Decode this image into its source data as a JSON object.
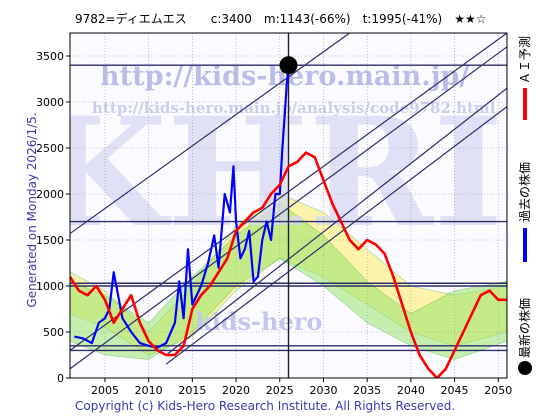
{
  "header": {
    "title": "9782=ディエムエス　　c:3400　m:1143(-66%)　t:1995(-41%)　★★☆"
  },
  "side": {
    "generated": "Generated on Monday 2026/1/5.",
    "copyright": "Copyright (c) Kids-Hero Research Institute. All Rights Reserved."
  },
  "watermarks": {
    "url": "http://kids-hero.main.jp/",
    "url2": "http://kids-hero.main.jp/analysis/code9782.html",
    "big": "KHRI",
    "small": "kids-hero"
  },
  "legend": [
    {
      "label": "ＡＩ予測",
      "color": "#ff0000"
    },
    {
      "label": "過去の株価",
      "color": "#0000ff"
    },
    {
      "label": "最新の株価",
      "color": "#000000"
    }
  ],
  "chart_data": {
    "type": "line",
    "title": "9782=ディエムエス　　c:3400　m:1143(-66%)　t:1995(-41%)　★★☆",
    "xlim": [
      2001.0,
      2051.0
    ],
    "ylim": [
      0,
      3750
    ],
    "x_ticks": [
      2005,
      2010,
      2015,
      2020,
      2025,
      2030,
      2035,
      2040,
      2045,
      2050
    ],
    "y_ticks": [
      0,
      500,
      1000,
      1500,
      2000,
      2500,
      3000,
      3500
    ],
    "latest_point": {
      "x": 2026.0,
      "y": 3400
    },
    "horizontal_levels": [
      3400,
      1700,
      1030,
      1000,
      350,
      300
    ],
    "trend_lines": [
      {
        "from": [
          2001.0,
          1570
        ],
        "to": [
          2033.0,
          3750
        ]
      },
      {
        "from": [
          2001.0,
          300
        ],
        "to": [
          2051.0,
          3750
        ]
      },
      {
        "from": [
          2001.0,
          100
        ],
        "to": [
          2051.0,
          3600
        ]
      },
      {
        "from": [
          2012.0,
          250
        ],
        "to": [
          2051.0,
          3150
        ]
      },
      {
        "from": [
          2012.0,
          150
        ],
        "to": [
          2051.0,
          2950
        ]
      }
    ],
    "series": [
      {
        "name": "過去の株価",
        "color": "#0000ff",
        "x": [
          2001.5,
          2002.5,
          2003.5,
          2004.3,
          2005.0,
          2005.5,
          2006.0,
          2007.0,
          2008.0,
          2009.0,
          2010.0,
          2011.0,
          2012.0,
          2013.0,
          2013.5,
          2014.0,
          2014.5,
          2015.0,
          2016.0,
          2016.8,
          2017.5,
          2018.0,
          2018.7,
          2019.3,
          2019.7,
          2020.0,
          2020.5,
          2021.0,
          2021.5,
          2022.0,
          2022.5,
          2023.0,
          2023.5,
          2024.0,
          2024.5,
          2025.0,
          2025.3,
          2025.6,
          2025.8,
          2026.0
        ],
        "y": [
          450,
          430,
          380,
          600,
          650,
          750,
          1150,
          650,
          500,
          380,
          350,
          330,
          380,
          600,
          1050,
          650,
          1400,
          800,
          1000,
          1250,
          1550,
          1200,
          2000,
          1800,
          2300,
          1700,
          1300,
          1400,
          1600,
          1050,
          1100,
          1500,
          1700,
          1500,
          2000,
          2000,
          2500,
          2900,
          3200,
          3400
        ]
      },
      {
        "name": "ＡＩ予測",
        "color": "#ff0000",
        "x": [
          2001.0,
          2002.0,
          2003.0,
          2004.0,
          2005.0,
          2006.0,
          2007.0,
          2008.0,
          2009.0,
          2010.0,
          2011.0,
          2012.0,
          2013.0,
          2014.0,
          2015.0,
          2016.0,
          2017.0,
          2018.0,
          2019.0,
          2020.0,
          2021.0,
          2022.0,
          2023.0,
          2024.0,
          2025.0,
          2026.0,
          2027.0,
          2028.0,
          2029.0,
          2030.0,
          2031.0,
          2032.0,
          2033.0,
          2034.0,
          2035.0,
          2036.0,
          2037.0,
          2038.0,
          2039.0,
          2040.0,
          2041.0,
          2042.0,
          2043.0,
          2044.0,
          2045.0,
          2046.0,
          2047.0,
          2048.0,
          2049.0,
          2050.0,
          2051.0
        ],
        "y": [
          1100,
          950,
          900,
          1000,
          850,
          600,
          750,
          900,
          600,
          400,
          300,
          250,
          250,
          350,
          750,
          900,
          1000,
          1150,
          1300,
          1600,
          1700,
          1800,
          1850,
          2000,
          2100,
          2300,
          2350,
          2450,
          2400,
          2150,
          1900,
          1700,
          1500,
          1400,
          1500,
          1450,
          1350,
          1100,
          800,
          500,
          250,
          100,
          0,
          100,
          300,
          500,
          700,
          900,
          950,
          850,
          850
        ]
      }
    ],
    "bands": [
      {
        "color": "#ffee66",
        "x": [
          2001.0,
          2005.0,
          2010.0,
          2015.0,
          2020.0,
          2025.0,
          2030.0,
          2035.0,
          2040.0,
          2045.0,
          2051.0
        ],
        "upper": [
          1150,
          950,
          500,
          1000,
          1650,
          2000,
          1800,
          1400,
          1000,
          900,
          1000
        ],
        "lower": [
          700,
          550,
          250,
          450,
          950,
          1300,
          1100,
          800,
          500,
          350,
          500
        ]
      },
      {
        "color": "#99e66e",
        "x": [
          2001.0,
          2005.0,
          2010.0,
          2015.0,
          2020.0,
          2025.0,
          2030.0,
          2035.0,
          2040.0,
          2045.0,
          2051.0
        ],
        "upper": [
          1050,
          900,
          600,
          1100,
          1550,
          1900,
          1550,
          1050,
          700,
          950,
          1050
        ],
        "lower": [
          400,
          250,
          200,
          500,
          1000,
          1300,
          1000,
          600,
          350,
          200,
          400
        ]
      }
    ]
  }
}
